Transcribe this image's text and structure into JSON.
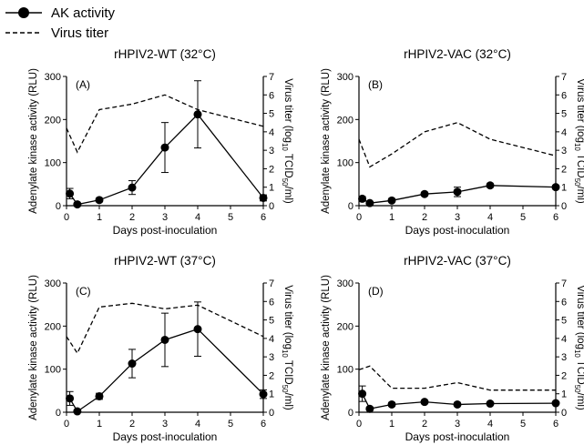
{
  "legend": {
    "items": [
      {
        "label": "AK activity",
        "style": "solid-marker"
      },
      {
        "label": "Virus titer",
        "style": "dashed"
      }
    ]
  },
  "chart_data": [
    {
      "type": "line",
      "panel": "(A)",
      "title": "rHPIV2-WT (32°C)",
      "xlabel": "Days post-inoculation",
      "ylabel": "Adenylate kinase activity (RLU)",
      "y2label": "Virus titer (log10 TCID50/ml)",
      "xlim": [
        0,
        6
      ],
      "xticks": [
        0,
        1,
        2,
        3,
        4,
        5,
        6
      ],
      "ylim": [
        0,
        300
      ],
      "yticks": [
        0,
        100,
        200,
        300
      ],
      "y2lim": [
        0,
        7
      ],
      "y2ticks": [
        0,
        1,
        2,
        3,
        4,
        5,
        6,
        7
      ],
      "ak": {
        "x": [
          0.1,
          0.33,
          1,
          2,
          3,
          4,
          6
        ],
        "y": [
          28,
          3,
          13,
          42,
          135,
          212,
          18
        ],
        "err": [
          12,
          3,
          4,
          16,
          58,
          78,
          7
        ]
      },
      "titer": {
        "x": [
          0,
          0.33,
          1,
          2,
          3,
          4,
          6
        ],
        "y": [
          4.2,
          2.9,
          5.2,
          5.5,
          6.0,
          5.2,
          4.3
        ]
      }
    },
    {
      "type": "line",
      "panel": "(B)",
      "title": "rHPIV2-VAC (32°C)",
      "xlabel": "Days post-inoculation",
      "ylabel": "Adenylate kinase activity (RLU)",
      "y2label": "Virus titer (log10 TCID50/ml)",
      "xlim": [
        0,
        6
      ],
      "xticks": [
        0,
        1,
        2,
        3,
        4,
        5,
        6
      ],
      "ylim": [
        0,
        300
      ],
      "yticks": [
        0,
        100,
        200,
        300
      ],
      "y2lim": [
        0,
        7
      ],
      "y2ticks": [
        0,
        1,
        2,
        3,
        4,
        5,
        6,
        7
      ],
      "ak": {
        "x": [
          0.1,
          0.33,
          1,
          2,
          3,
          4,
          6
        ],
        "y": [
          16,
          6,
          12,
          27,
          32,
          47,
          43
        ],
        "err": [
          5,
          3,
          3,
          4,
          11,
          4,
          4
        ]
      },
      "titer": {
        "x": [
          0,
          0.33,
          1,
          2,
          3,
          4,
          6
        ],
        "y": [
          3.6,
          2.1,
          2.8,
          4.0,
          4.5,
          3.6,
          2.7
        ]
      }
    },
    {
      "type": "line",
      "panel": "(C)",
      "title": "rHPIV2-WT (37°C)",
      "xlabel": "Days post-inoculation",
      "ylabel": "Adenylate kinase activity (RLU)",
      "y2label": "Virus titer (log10 TCID50/ml)",
      "xlim": [
        0,
        6
      ],
      "xticks": [
        0,
        1,
        2,
        3,
        4,
        5,
        6
      ],
      "ylim": [
        0,
        300
      ],
      "yticks": [
        0,
        100,
        200,
        300
      ],
      "y2lim": [
        0,
        7
      ],
      "y2ticks": [
        0,
        1,
        2,
        3,
        4,
        5,
        6,
        7
      ],
      "ak": {
        "x": [
          0.1,
          0.33,
          1,
          2,
          3,
          4,
          6
        ],
        "y": [
          32,
          2,
          37,
          113,
          168,
          193,
          42
        ],
        "err": [
          16,
          2,
          7,
          33,
          62,
          63,
          10
        ]
      },
      "titer": {
        "x": [
          0,
          0.33,
          1,
          2,
          3,
          4,
          6
        ],
        "y": [
          4.1,
          3.2,
          5.7,
          5.9,
          5.6,
          5.8,
          4.1
        ]
      }
    },
    {
      "type": "line",
      "panel": "(D)",
      "title": "rHPIV2-VAC (37°C)",
      "xlabel": "Days post-inoculation",
      "ylabel": "Adenylate kinase activity (RLU)",
      "y2label": "Virus titer (log10 TCID50/ml)",
      "xlim": [
        0,
        6
      ],
      "xticks": [
        0,
        1,
        2,
        3,
        4,
        5,
        6
      ],
      "ylim": [
        0,
        300
      ],
      "yticks": [
        0,
        100,
        200,
        300
      ],
      "y2lim": [
        0,
        7
      ],
      "y2ticks": [
        0,
        1,
        2,
        3,
        4,
        5,
        6,
        7
      ],
      "ak": {
        "x": [
          0.1,
          0.33,
          1,
          2,
          3,
          4,
          6
        ],
        "y": [
          43,
          8,
          18,
          24,
          18,
          20,
          21
        ],
        "err": [
          18,
          3,
          4,
          3,
          3,
          3,
          3
        ]
      },
      "titer": {
        "x": [
          0,
          0.33,
          1,
          2,
          3,
          4,
          6
        ],
        "y": [
          2.3,
          2.5,
          1.3,
          1.3,
          1.6,
          1.2,
          1.2
        ]
      }
    }
  ]
}
